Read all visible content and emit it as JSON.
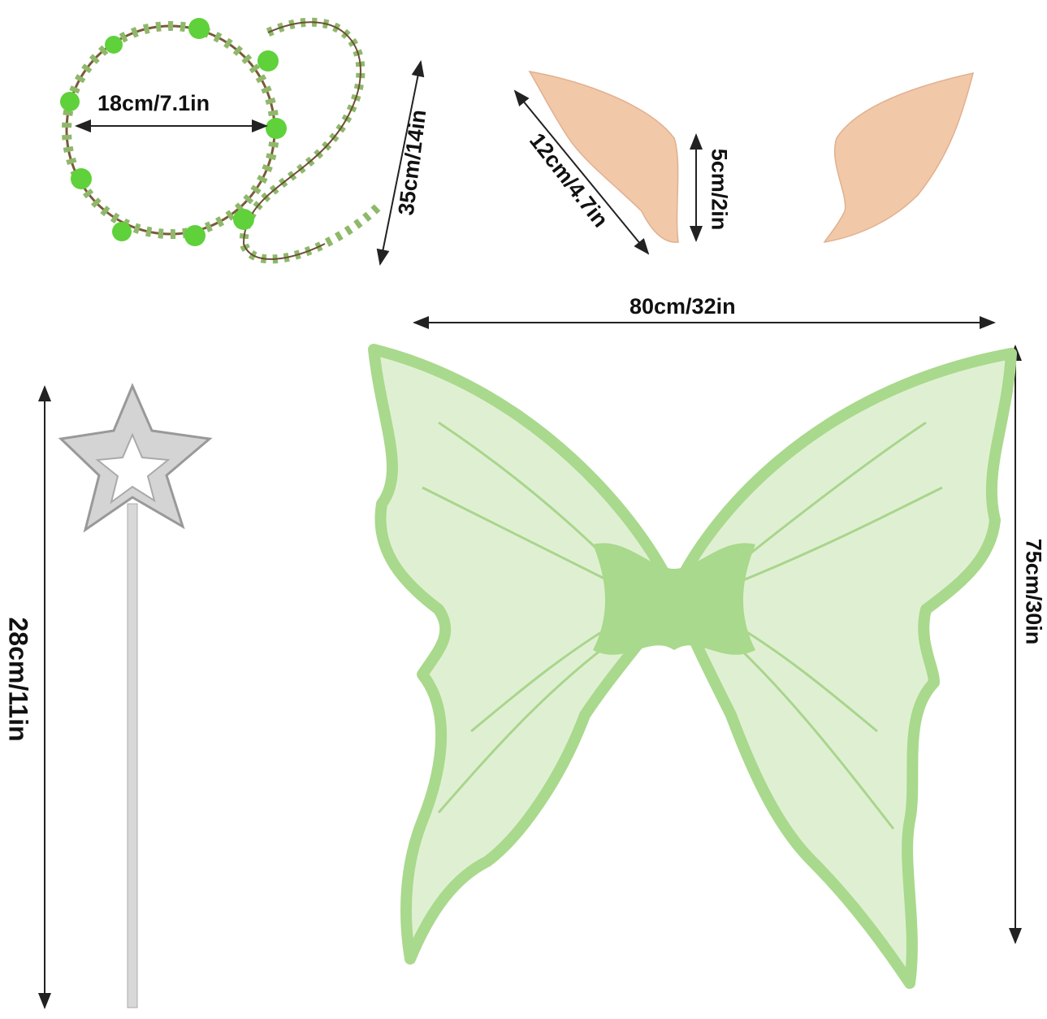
{
  "items": {
    "wreath": {
      "icon": "leaf-wreath-icon",
      "diameter_label": "18cm/7.1in",
      "length_label": "35cm/14in"
    },
    "ears": {
      "icon": "elf-ear-icon",
      "length_label": "12cm/4.7in",
      "width_label": "5cm/2in"
    },
    "wings": {
      "icon": "butterfly-wings-icon",
      "width_label": "80cm/32in",
      "height_label": "75cm/30in"
    },
    "wand": {
      "icon": "star-wand-icon",
      "length_label": "28cm/11in"
    }
  },
  "colors": {
    "wing_green": "#a9d98c",
    "wing_vein": "#7cc35a",
    "leaf_green": "#7fa85a",
    "ear_skin": "#f2c9a8",
    "wand_silver": "#c8c8c8"
  }
}
